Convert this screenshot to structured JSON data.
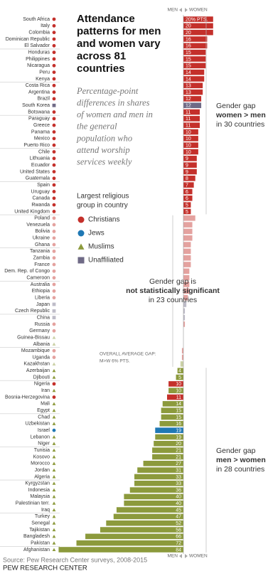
{
  "chart_data": {
    "type": "diverging-bar",
    "title": [
      "Attendance",
      "patterns for men",
      "and women vary",
      "across 81",
      "countries"
    ],
    "subtitle": [
      "Percentage-point",
      "differences in shares",
      "of women and men in",
      "the general",
      "population who",
      "attend worship",
      "services weekly"
    ],
    "axis_labels": {
      "left": "MEN",
      "right": "WOMEN"
    },
    "legend": {
      "title": [
        "Largest religious",
        "group in country"
      ],
      "items": [
        {
          "name": "Christians",
          "color": "#c4302b",
          "shape": "circle"
        },
        {
          "name": "Jews",
          "color": "#1f78b4",
          "shape": "circle"
        },
        {
          "name": "Muslims",
          "color": "#8c9a3c",
          "shape": "triangle"
        },
        {
          "name": "Unaffiliated",
          "color": "#6f6a86",
          "shape": "square"
        }
      ]
    },
    "average_note": [
      "OVERALL AVERAGE GAP:",
      "M>W 6% PTS."
    ],
    "sections": [
      {
        "side": "right",
        "muted": false,
        "data_labels": true,
        "note": {
          "lines": [
            "Gender gap",
            "women > men",
            "in 30 countries"
          ],
          "bold_line": 1
        },
        "categories": [
          "South Africa",
          "Italy",
          "Colombia",
          "Dominican Republic",
          "El Salvador",
          "Honduras",
          "Philippines",
          "Nicaragua",
          "Peru",
          "Kenya",
          "Costa Rica",
          "Argentina",
          "Brazil",
          "South Korea",
          "Botswana",
          "Paraguay",
          "Greece",
          "Panama",
          "Mexico",
          "Puerto Rico",
          "Chile",
          "Lithuania",
          "Ecuador",
          "United States",
          "Guatemala",
          "Spain",
          "Uruguay",
          "Canada",
          "Rwanda",
          "United Kingdom"
        ],
        "religions": [
          "Christians",
          "Christians",
          "Christians",
          "Christians",
          "Christians",
          "Christians",
          "Christians",
          "Christians",
          "Christians",
          "Christians",
          "Christians",
          "Christians",
          "Christians",
          "Unaffiliated",
          "Christians",
          "Christians",
          "Christians",
          "Christians",
          "Christians",
          "Christians",
          "Christians",
          "Christians",
          "Christians",
          "Christians",
          "Christians",
          "Christians",
          "Christians",
          "Christians",
          "Christians",
          "Christians"
        ],
        "values": [
          20,
          20,
          20,
          16,
          16,
          15,
          15,
          15,
          14,
          14,
          13,
          13,
          12,
          12,
          11,
          11,
          11,
          10,
          10,
          10,
          10,
          9,
          9,
          9,
          8,
          7,
          6,
          6,
          5,
          5
        ],
        "value_labels": [
          "20% PTS.",
          "20",
          "20",
          "16",
          "16",
          "15",
          "15",
          "15",
          "14",
          "14",
          "13",
          "13",
          "12",
          "12",
          "11",
          "11",
          "11",
          "10",
          "10",
          "10",
          "10",
          "9",
          "9",
          "9",
          "8",
          "7",
          "6",
          "6",
          "5",
          "5"
        ]
      },
      {
        "side": "right",
        "muted": true,
        "data_labels": false,
        "note": {
          "lines": [
            "Gender gap is",
            "not statistically significant",
            "in 23 countries"
          ],
          "bold_line": 1
        },
        "categories": [
          "Poland",
          "Venezuela",
          "Bolivia",
          "Ukraine",
          "Ghana",
          "Tanzania",
          "Zambia",
          "France",
          "Dem. Rep. of Congo",
          "Cameroon",
          "Australia",
          "Ethiopia",
          "Liberia",
          "Japan",
          "Czech Republic",
          "China",
          "Russia",
          "Germany",
          "Guinea-Bissau",
          "Albania",
          "Mozambique",
          "Uganda",
          "Kazakhstan"
        ],
        "religions": [
          "Christians",
          "Christians",
          "Christians",
          "Christians",
          "Christians",
          "Christians",
          "Christians",
          "Christians",
          "Christians",
          "Christians",
          "Christians",
          "Christians",
          "Christians",
          "Unaffiliated",
          "Unaffiliated",
          "Unaffiliated",
          "Christians",
          "Christians",
          "Muslims",
          "Muslims",
          "Christians",
          "Christians",
          "Muslims"
        ],
        "values": [
          8,
          6,
          6,
          6,
          5,
          5,
          5,
          5,
          4,
          4,
          4,
          4,
          3,
          2,
          1,
          1,
          1,
          0,
          0,
          0,
          -1,
          -1,
          -2
        ]
      },
      {
        "side": "left",
        "muted": false,
        "data_labels": true,
        "note": {
          "lines": [
            "Gender gap",
            "men > women",
            "in 28 countries"
          ],
          "bold_line": 1
        },
        "categories": [
          "Azerbaijan",
          "Djibouti",
          "Nigeria",
          "Iran",
          "Bosnia-Herzegovina",
          "Mali",
          "Egypt",
          "Chad",
          "Uzbekistan",
          "Israel",
          "Lebanon",
          "Niger",
          "Tunisia",
          "Kosovo",
          "Morocco",
          "Jordan",
          "Algeria",
          "Kyrgyzstan",
          "Indonesia",
          "Malaysia",
          "Palestinian terr.",
          "Iraq",
          "Turkey",
          "Senegal",
          "Tajikistan",
          "Bangladesh",
          "Pakistan",
          "Afghanistan"
        ],
        "religions": [
          "Muslims",
          "Muslims",
          "Christians",
          "Muslims",
          "Christians",
          "Muslims",
          "Muslims",
          "Muslims",
          "Muslims",
          "Jews",
          "Muslims",
          "Muslims",
          "Muslims",
          "Muslims",
          "Muslims",
          "Muslims",
          "Muslims",
          "Muslims",
          "Muslims",
          "Muslims",
          "Muslims",
          "Muslims",
          "Muslims",
          "Muslims",
          "Muslims",
          "Muslims",
          "Muslims",
          "Muslims"
        ],
        "values": [
          4,
          5,
          10,
          10,
          11,
          14,
          15,
          15,
          16,
          19,
          19,
          20,
          21,
          21,
          27,
          31,
          33,
          33,
          36,
          40,
          40,
          45,
          47,
          52,
          56,
          66,
          72,
          84
        ]
      }
    ],
    "source": "Source: Pew Research Center surveys, 2008-2015",
    "brand": "PEW RESEARCH CENTER"
  }
}
